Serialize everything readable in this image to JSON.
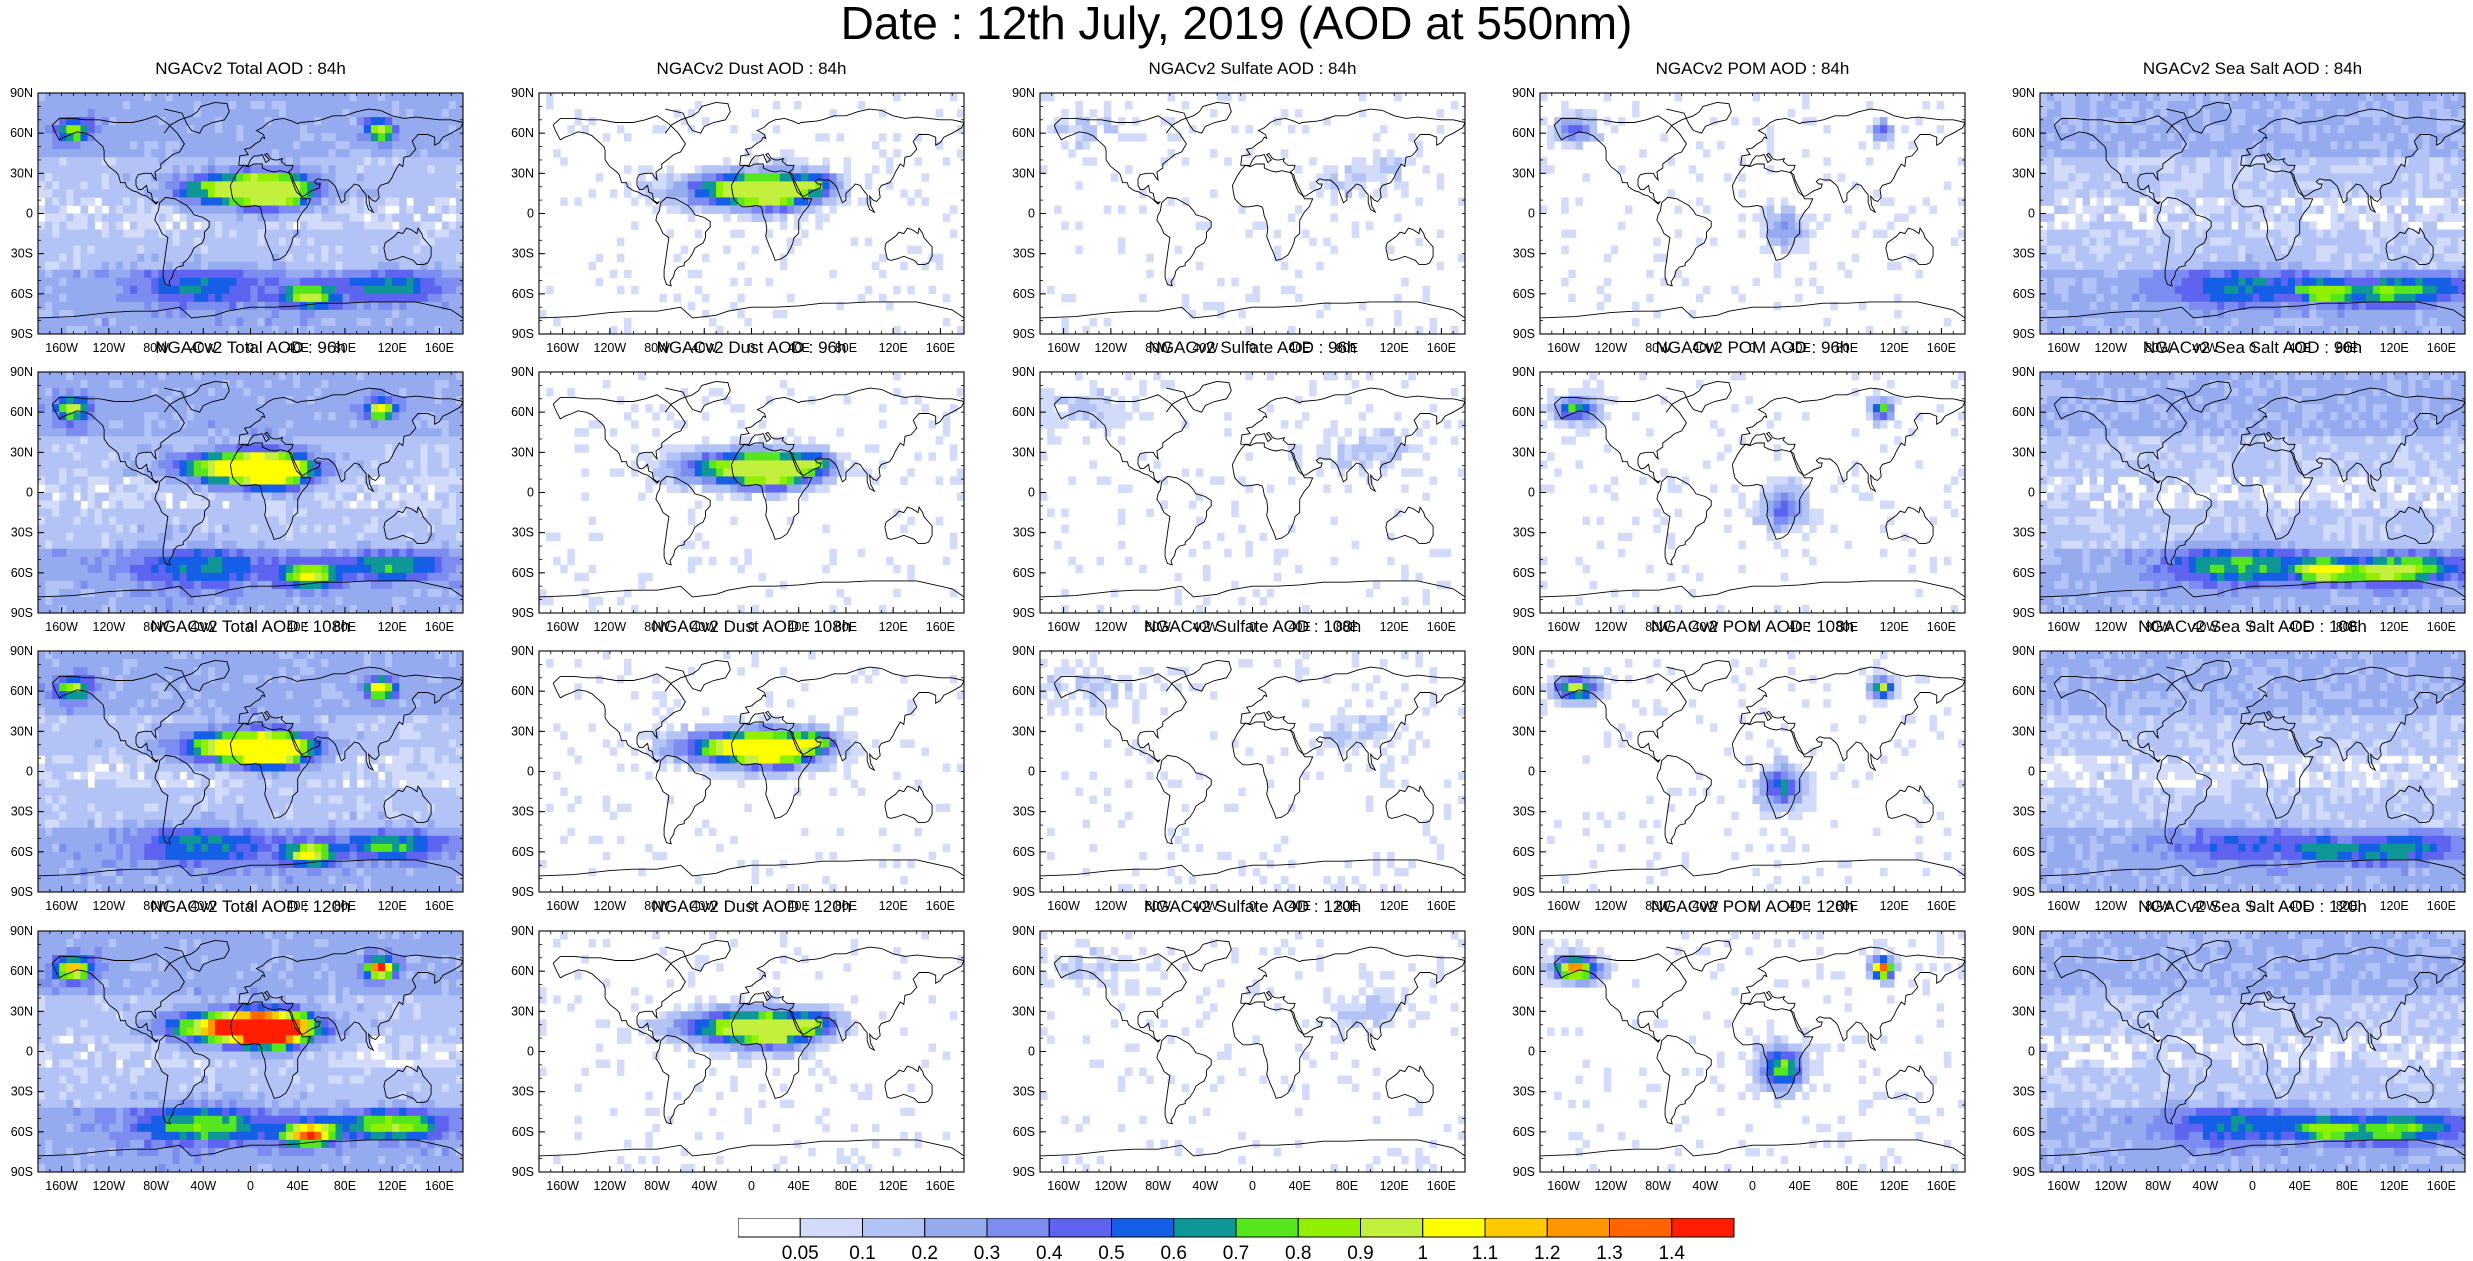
{
  "title": "Date : 12th July, 2019 (AOD at 550nm)",
  "chart_data": {
    "type": "heatmap",
    "variable": "AOD at 550nm",
    "date": "12th July, 2019",
    "species": [
      "Total",
      "Dust",
      "Sulfate",
      "POM",
      "Sea Salt"
    ],
    "forecast_hours": [
      "84h",
      "96h",
      "108h",
      "120h"
    ],
    "panels": [
      {
        "title": "NGACv2 Total AOD : 84h",
        "species": "Total",
        "hour": "84h",
        "max_aod": 0.9
      },
      {
        "title": "NGACv2 Dust AOD : 84h",
        "species": "Dust",
        "hour": "84h",
        "max_aod": 0.9
      },
      {
        "title": "NGACv2 Sulfate AOD : 84h",
        "species": "Sulfate",
        "hour": "84h",
        "max_aod": 0.3
      },
      {
        "title": "NGACv2 POM AOD : 84h",
        "species": "POM",
        "hour": "84h",
        "max_aod": 0.5
      },
      {
        "title": "NGACv2 Sea Salt AOD : 84h",
        "species": "Sea Salt",
        "hour": "84h",
        "max_aod": 0.8
      },
      {
        "title": "NGACv2 Total AOD : 96h",
        "species": "Total",
        "hour": "96h",
        "max_aod": 1.0
      },
      {
        "title": "NGACv2 Dust AOD : 96h",
        "species": "Dust",
        "hour": "96h",
        "max_aod": 0.9
      },
      {
        "title": "NGACv2 Sulfate AOD : 96h",
        "species": "Sulfate",
        "hour": "96h",
        "max_aod": 0.3
      },
      {
        "title": "NGACv2 POM AOD : 96h",
        "species": "POM",
        "hour": "96h",
        "max_aod": 0.8
      },
      {
        "title": "NGACv2 Sea Salt AOD : 96h",
        "species": "Sea Salt",
        "hour": "96h",
        "max_aod": 1.0
      },
      {
        "title": "NGACv2 Total AOD : 108h",
        "species": "Total",
        "hour": "108h",
        "max_aod": 1.0
      },
      {
        "title": "NGACv2 Dust AOD : 108h",
        "species": "Dust",
        "hour": "108h",
        "max_aod": 1.0
      },
      {
        "title": "NGACv2 Sulfate AOD : 108h",
        "species": "Sulfate",
        "hour": "108h",
        "max_aod": 0.3
      },
      {
        "title": "NGACv2 POM AOD : 108h",
        "species": "POM",
        "hour": "108h",
        "max_aod": 1.0
      },
      {
        "title": "NGACv2 Sea Salt AOD : 108h",
        "species": "Sea Salt",
        "hour": "108h",
        "max_aod": 0.6
      },
      {
        "title": "NGACv2 Total AOD : 120h",
        "species": "Total",
        "hour": "120h",
        "max_aod": 1.4
      },
      {
        "title": "NGACv2 Dust AOD : 120h",
        "species": "Dust",
        "hour": "120h",
        "max_aod": 0.9
      },
      {
        "title": "NGACv2 Sulfate AOD : 120h",
        "species": "Sulfate",
        "hour": "120h",
        "max_aod": 0.3
      },
      {
        "title": "NGACv2 POM AOD : 120h",
        "species": "POM",
        "hour": "120h",
        "max_aod": 1.4
      },
      {
        "title": "NGACv2 Sea Salt  AOD : 120h",
        "species": "Sea Salt",
        "hour": "120h",
        "max_aod": 0.8
      }
    ],
    "x_ticks": [
      "160W",
      "120W",
      "80W",
      "40W",
      "0",
      "40E",
      "80E",
      "120E",
      "160E"
    ],
    "y_ticks": [
      "90N",
      "60N",
      "30N",
      "0",
      "30S",
      "60S",
      "90S"
    ],
    "xlim": [
      -180,
      180
    ],
    "ylim": [
      -90,
      90
    ],
    "colorbar": {
      "levels": [
        "0.05",
        "0.1",
        "0.2",
        "0.3",
        "0.4",
        "0.5",
        "0.6",
        "0.7",
        "0.8",
        "0.9",
        "1",
        "1.1",
        "1.2",
        "1.3",
        "1.4"
      ],
      "colors": [
        "#ffffff",
        "#d2dcfa",
        "#b4c3f5",
        "#96aaf0",
        "#7d8cf0",
        "#5f64f0",
        "#145fe6",
        "#0f9696",
        "#55e61e",
        "#91f000",
        "#c3f03c",
        "#ffff00",
        "#ffc800",
        "#ff9600",
        "#ff6400",
        "#ff1e00"
      ]
    }
  }
}
